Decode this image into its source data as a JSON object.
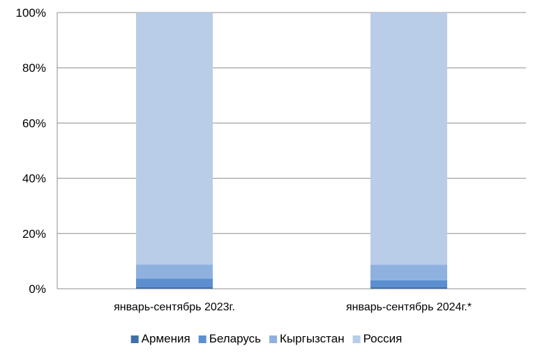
{
  "chart_data": {
    "type": "bar",
    "stacked": true,
    "normalized_percent": true,
    "categories": [
      "январь-сентябрь 2023г.",
      "январь-сентябрь 2024г.*"
    ],
    "series": [
      {
        "name": "Армения",
        "values": [
          0.5,
          0.5
        ],
        "color": "#3f6fa6"
      },
      {
        "name": "Беларусь",
        "values": [
          3.2,
          2.6
        ],
        "color": "#5b8fcf"
      },
      {
        "name": "Кыргызстан",
        "values": [
          5.1,
          5.6
        ],
        "color": "#8fb1e0"
      },
      {
        "name": "Россия",
        "values": [
          91.2,
          91.3
        ],
        "color": "#b9cde8"
      }
    ],
    "y_ticks": [
      "0%",
      "20%",
      "40%",
      "60%",
      "80%",
      "100%"
    ],
    "ylim": [
      0,
      100
    ],
    "grid": true,
    "legend_position": "bottom"
  }
}
